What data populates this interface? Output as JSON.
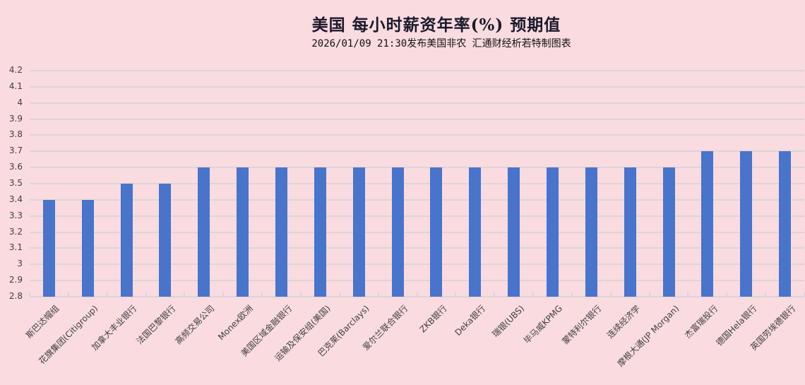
{
  "chart_data": {
    "type": "bar",
    "title": "美国  每小时薪资年率(%)  预期值",
    "subtitle": "2026/01/09 21:30发布美国非农 汇通财经析若特制图表",
    "xlabel": "",
    "ylabel": "",
    "ylim": [
      2.8,
      4.2
    ],
    "ytick_step": 0.1,
    "yticks": [
      "4.2",
      "4.1",
      "4",
      "3.9",
      "3.8",
      "3.7",
      "3.6",
      "3.5",
      "3.4",
      "3.3",
      "3.2",
      "3.1",
      "3",
      "2.9",
      "2.8"
    ],
    "grid": true,
    "legend": "none",
    "bar_color": "#4874cb",
    "categories": [
      "斯巴达帽组",
      "花旗集团(Citigroup)",
      "加拿大丰业银行",
      "法国巴黎银行",
      "高频交易公司",
      "Monex欧洲",
      "美国区域金融银行",
      "运输及保安组(美国)",
      "巴克莱(Barclays)",
      "爱尔兰联合银行",
      "ZKB银行",
      "Deka银行",
      "瑞银(UBS)",
      "毕马威KPMG",
      "蒙特利尔银行",
      "连续经济学",
      "摩根大通(JP Morgan)",
      "杰富瑞投行",
      "德国Hela银行",
      "英国劳埃德银行"
    ],
    "values": [
      3.4,
      3.4,
      3.5,
      3.5,
      3.6,
      3.6,
      3.6,
      3.6,
      3.6,
      3.6,
      3.6,
      3.6,
      3.6,
      3.6,
      3.6,
      3.6,
      3.6,
      3.7,
      3.7,
      3.7
    ]
  }
}
